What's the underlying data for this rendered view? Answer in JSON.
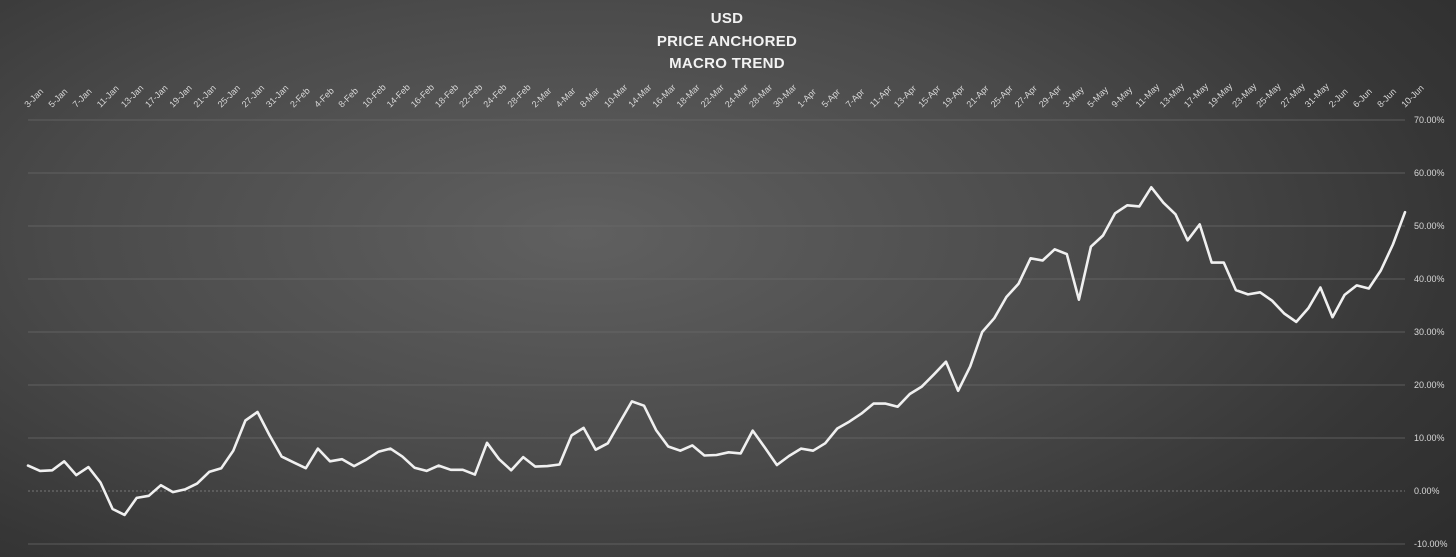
{
  "chart_data": {
    "type": "line",
    "title": [
      "USD",
      "PRICE ANCHORED",
      "MACRO TREND"
    ],
    "xlabel": "",
    "ylabel": "",
    "ylim": [
      -10,
      70
    ],
    "y_ticks": [
      -10,
      0,
      10,
      20,
      30,
      40,
      50,
      60,
      70
    ],
    "y_tick_labels": [
      "-10.00%",
      "0.00%",
      "10.00%",
      "20.00%",
      "30.00%",
      "40.00%",
      "50.00%",
      "60.00%",
      "70.00%"
    ],
    "x_tick_labels": [
      "3-Jan",
      "5-Jan",
      "7-Jan",
      "11-Jan",
      "13-Jan",
      "17-Jan",
      "19-Jan",
      "21-Jan",
      "25-Jan",
      "27-Jan",
      "31-Jan",
      "2-Feb",
      "4-Feb",
      "8-Feb",
      "10-Feb",
      "14-Feb",
      "16-Feb",
      "18-Feb",
      "22-Feb",
      "24-Feb",
      "28-Feb",
      "2-Mar",
      "4-Mar",
      "8-Mar",
      "10-Mar",
      "14-Mar",
      "16-Mar",
      "18-Mar",
      "22-Mar",
      "24-Mar",
      "28-Mar",
      "30-Mar",
      "1-Apr",
      "5-Apr",
      "7-Apr",
      "11-Apr",
      "13-Apr",
      "15-Apr",
      "19-Apr",
      "21-Apr",
      "25-Apr",
      "27-Apr",
      "29-Apr",
      "3-May",
      "5-May",
      "9-May",
      "11-May",
      "13-May",
      "17-May",
      "19-May",
      "23-May",
      "25-May",
      "27-May",
      "31-May",
      "2-Jun",
      "6-Jun",
      "8-Jun",
      "10-Jun"
    ],
    "grid": true,
    "legend": "none",
    "y_axis_position": "right",
    "line_color": "#f0f0f0",
    "series": [
      {
        "values": [
          4.8,
          3.8,
          3.9,
          5.6,
          3.0,
          4.5,
          1.6,
          -3.4,
          -4.5,
          -1.3,
          -0.9,
          1.1,
          -0.2,
          0.3,
          1.4,
          3.6,
          4.3,
          7.6,
          13.3,
          14.9,
          10.5,
          6.5,
          5.4,
          4.3,
          8.0,
          5.6,
          6.0,
          4.7,
          5.9,
          7.4,
          8.0,
          6.5,
          4.4,
          3.8,
          4.8,
          4.0,
          4.0,
          3.1,
          9.1,
          6.0,
          3.9,
          6.4,
          4.6,
          4.7,
          5.0,
          10.5,
          11.9,
          7.8,
          9.0,
          13.0,
          16.9,
          16.1,
          11.5,
          8.4,
          7.6,
          8.6,
          6.7,
          6.8,
          7.3,
          7.1,
          11.4,
          8.2,
          4.9,
          6.6,
          8.0,
          7.6,
          9.0,
          11.8,
          13.1,
          14.6,
          16.5,
          16.5,
          15.9,
          18.3,
          19.7,
          22.0,
          24.4,
          18.9,
          23.5,
          30.0,
          32.6,
          36.6,
          39.1,
          43.9,
          43.5,
          45.6,
          44.7,
          36.1,
          46.1,
          48.2,
          52.4,
          53.9,
          53.7,
          57.3,
          54.4,
          52.2,
          47.3,
          50.3,
          43.1,
          43.1,
          37.9,
          37.1,
          37.5,
          35.9,
          33.5,
          31.9,
          34.5,
          38.4,
          32.8,
          37.0,
          38.8,
          38.2,
          41.6,
          46.5,
          52.6
        ]
      }
    ]
  }
}
